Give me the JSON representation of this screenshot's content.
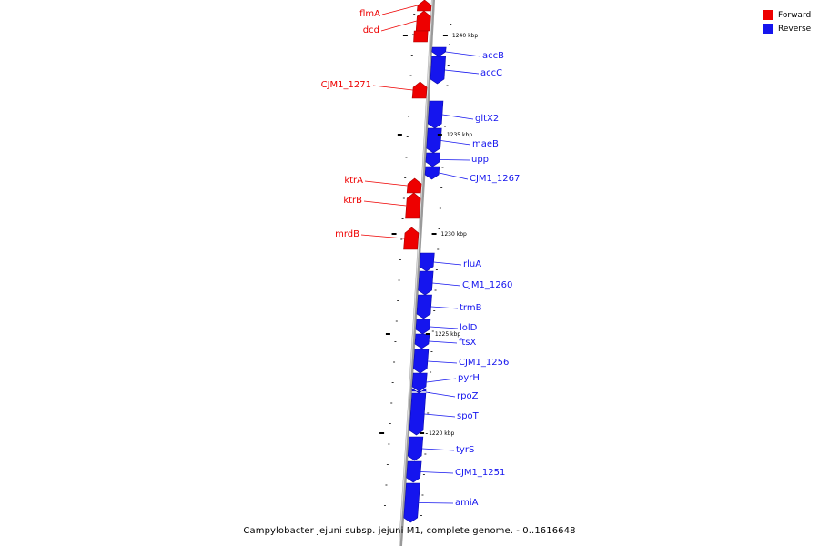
{
  "title": "Campylobacter jejuni subsp. jejuni M1, complete genome. - 0..1616648",
  "legend": [
    {
      "label": "Forward",
      "color": "#ee0000"
    },
    {
      "label": "Reverse",
      "color": "#1515ee"
    }
  ],
  "colors": {
    "forward": "#ee0000",
    "reverse": "#1515ee",
    "backbone": "#888888"
  },
  "scale_labels": [
    "1240 kbp",
    "1235 kbp",
    "1230 kbp",
    "1225 kbp",
    "1220 kbp"
  ],
  "genes": [
    {
      "name": "flmA",
      "strand": "forward"
    },
    {
      "name": "dcd",
      "strand": "forward"
    },
    {
      "name": "accB",
      "strand": "reverse"
    },
    {
      "name": "accC",
      "strand": "reverse"
    },
    {
      "name": "CJM1_1271",
      "strand": "forward"
    },
    {
      "name": "gltX2",
      "strand": "reverse"
    },
    {
      "name": "maeB",
      "strand": "reverse"
    },
    {
      "name": "upp",
      "strand": "reverse"
    },
    {
      "name": "CJM1_1267",
      "strand": "reverse"
    },
    {
      "name": "ktrA",
      "strand": "forward"
    },
    {
      "name": "ktrB",
      "strand": "forward"
    },
    {
      "name": "mrdB",
      "strand": "forward"
    },
    {
      "name": "rluA",
      "strand": "reverse"
    },
    {
      "name": "CJM1_1260",
      "strand": "reverse"
    },
    {
      "name": "trmB",
      "strand": "reverse"
    },
    {
      "name": "lolD",
      "strand": "reverse"
    },
    {
      "name": "ftsX",
      "strand": "reverse"
    },
    {
      "name": "CJM1_1256",
      "strand": "reverse"
    },
    {
      "name": "pyrH",
      "strand": "reverse"
    },
    {
      "name": "rpoZ",
      "strand": "reverse"
    },
    {
      "name": "spoT",
      "strand": "reverse"
    },
    {
      "name": "tyrS",
      "strand": "reverse"
    },
    {
      "name": "CJM1_1251",
      "strand": "reverse"
    },
    {
      "name": "amiA",
      "strand": "reverse"
    }
  ]
}
